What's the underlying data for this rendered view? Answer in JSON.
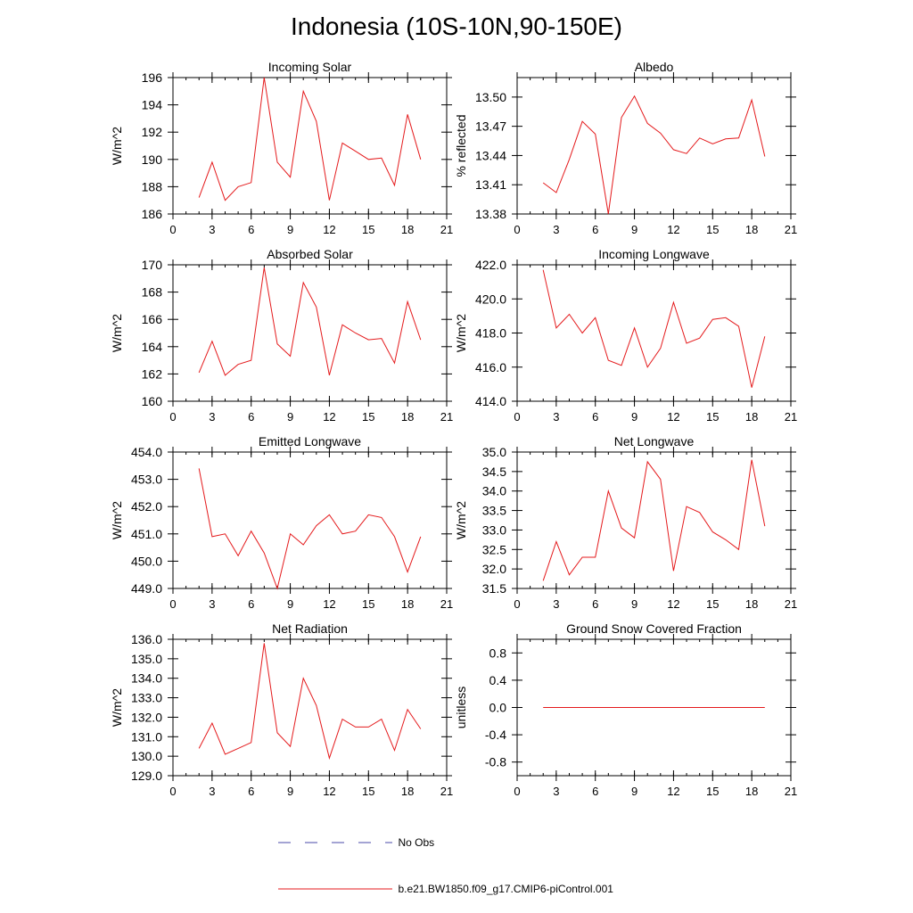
{
  "title": "Indonesia (10S-10N,90-150E)",
  "legend": {
    "obs_label": "No Obs",
    "obs_color": "#4a4aa8",
    "model_label": "b.e21.BW1850.f09_g17.CMIP6-piControl.001",
    "model_color": "#e41a1c"
  },
  "chart_data": [
    {
      "type": "line",
      "title": "Incoming Solar",
      "ylabel": "W/m^2",
      "xlabel": "",
      "xlim": [
        0,
        21
      ],
      "ylim": [
        186,
        196
      ],
      "x_ticks": [
        "0",
        "3",
        "6",
        "9",
        "12",
        "15",
        "18",
        "21"
      ],
      "y_ticks": [
        "186",
        "188",
        "190",
        "192",
        "194",
        "196"
      ],
      "series": [
        {
          "name": "b.e21.BW1850.f09_g17.CMIP6-piControl.001",
          "x": [
            2,
            3,
            4,
            5,
            6,
            7,
            8,
            9,
            10,
            11,
            12,
            13,
            14,
            15,
            16,
            17,
            18,
            19
          ],
          "values": [
            187.2,
            189.8,
            187.0,
            188.0,
            188.3,
            196.0,
            189.8,
            188.7,
            195.0,
            192.8,
            187.0,
            191.2,
            190.6,
            190.0,
            190.1,
            188.1,
            193.3,
            190.0
          ]
        }
      ]
    },
    {
      "type": "line",
      "title": "Albedo",
      "ylabel": "% reflected",
      "xlabel": "",
      "xlim": [
        0,
        21
      ],
      "ylim": [
        13.38,
        13.52
      ],
      "x_ticks": [
        "0",
        "3",
        "6",
        "9",
        "12",
        "15",
        "18",
        "21"
      ],
      "y_ticks": [
        "13.38",
        "13.41",
        "13.44",
        "13.47",
        "13.50"
      ],
      "series": [
        {
          "name": "b.e21.BW1850.f09_g17.CMIP6-piControl.001",
          "x": [
            2,
            3,
            4,
            5,
            6,
            7,
            8,
            9,
            10,
            11,
            12,
            13,
            14,
            15,
            16,
            17,
            18,
            19
          ],
          "values": [
            13.412,
            13.402,
            13.436,
            13.475,
            13.462,
            13.38,
            13.479,
            13.501,
            13.473,
            13.463,
            13.446,
            13.442,
            13.458,
            13.452,
            13.457,
            13.458,
            13.497,
            13.439
          ]
        }
      ]
    },
    {
      "type": "line",
      "title": "Absorbed Solar",
      "ylabel": "W/m^2",
      "xlabel": "",
      "xlim": [
        0,
        21
      ],
      "ylim": [
        160,
        170
      ],
      "x_ticks": [
        "0",
        "3",
        "6",
        "9",
        "12",
        "15",
        "18",
        "21"
      ],
      "y_ticks": [
        "160",
        "162",
        "164",
        "166",
        "168",
        "170"
      ],
      "series": [
        {
          "name": "b.e21.BW1850.f09_g17.CMIP6-piControl.001",
          "x": [
            2,
            3,
            4,
            5,
            6,
            7,
            8,
            9,
            10,
            11,
            12,
            13,
            14,
            15,
            16,
            17,
            18,
            19
          ],
          "values": [
            162.1,
            164.4,
            161.9,
            162.7,
            163.0,
            169.8,
            164.2,
            163.3,
            168.7,
            166.9,
            161.9,
            165.6,
            165.0,
            164.5,
            164.6,
            162.8,
            167.3,
            164.5
          ]
        }
      ]
    },
    {
      "type": "line",
      "title": "Incoming Longwave",
      "ylabel": "W/m^2",
      "xlabel": "",
      "xlim": [
        0,
        21
      ],
      "ylim": [
        414.0,
        422.0
      ],
      "x_ticks": [
        "0",
        "3",
        "6",
        "9",
        "12",
        "15",
        "18",
        "21"
      ],
      "y_ticks": [
        "414.0",
        "416.0",
        "418.0",
        "420.0",
        "422.0"
      ],
      "series": [
        {
          "name": "b.e21.BW1850.f09_g17.CMIP6-piControl.001",
          "x": [
            2,
            3,
            4,
            5,
            6,
            7,
            8,
            9,
            10,
            11,
            12,
            13,
            14,
            15,
            16,
            17,
            18,
            19
          ],
          "values": [
            421.7,
            418.3,
            419.1,
            418.0,
            418.9,
            416.4,
            416.1,
            418.3,
            416.0,
            417.1,
            419.8,
            417.4,
            417.7,
            418.8,
            418.9,
            418.4,
            414.8,
            417.8
          ]
        }
      ]
    },
    {
      "type": "line",
      "title": "Emitted Longwave",
      "ylabel": "W/m^2",
      "xlabel": "",
      "xlim": [
        0,
        21
      ],
      "ylim": [
        449.0,
        454.0
      ],
      "x_ticks": [
        "0",
        "3",
        "6",
        "9",
        "12",
        "15",
        "18",
        "21"
      ],
      "y_ticks": [
        "449.0",
        "450.0",
        "451.0",
        "452.0",
        "453.0",
        "454.0"
      ],
      "series": [
        {
          "name": "b.e21.BW1850.f09_g17.CMIP6-piControl.001",
          "x": [
            2,
            3,
            4,
            5,
            6,
            7,
            8,
            9,
            10,
            11,
            12,
            13,
            14,
            15,
            16,
            17,
            18,
            19
          ],
          "values": [
            453.4,
            450.9,
            451.0,
            450.2,
            451.1,
            450.3,
            449.0,
            451.0,
            450.6,
            451.3,
            451.7,
            451.0,
            451.1,
            451.7,
            451.6,
            450.9,
            449.6,
            450.9
          ]
        }
      ]
    },
    {
      "type": "line",
      "title": "Net Longwave",
      "ylabel": "W/m^2",
      "xlabel": "",
      "xlim": [
        0,
        21
      ],
      "ylim": [
        31.5,
        35.0
      ],
      "x_ticks": [
        "0",
        "3",
        "6",
        "9",
        "12",
        "15",
        "18",
        "21"
      ],
      "y_ticks": [
        "31.5",
        "32.0",
        "32.5",
        "33.0",
        "33.5",
        "34.0",
        "34.5",
        "35.0"
      ],
      "series": [
        {
          "name": "b.e21.BW1850.f09_g17.CMIP6-piControl.001",
          "x": [
            2,
            3,
            4,
            5,
            6,
            7,
            8,
            9,
            10,
            11,
            12,
            13,
            14,
            15,
            16,
            17,
            18,
            19
          ],
          "values": [
            31.7,
            32.7,
            31.85,
            32.3,
            32.3,
            34.0,
            33.05,
            32.8,
            34.75,
            34.3,
            31.95,
            33.6,
            33.45,
            32.95,
            32.75,
            32.5,
            34.8,
            33.1
          ]
        }
      ]
    },
    {
      "type": "line",
      "title": "Net Radiation",
      "ylabel": "W/m^2",
      "xlabel": "",
      "xlim": [
        0,
        21
      ],
      "ylim": [
        129.0,
        136.0
      ],
      "x_ticks": [
        "0",
        "3",
        "6",
        "9",
        "12",
        "15",
        "18",
        "21"
      ],
      "y_ticks": [
        "129.0",
        "130.0",
        "131.0",
        "132.0",
        "133.0",
        "134.0",
        "135.0",
        "136.0"
      ],
      "series": [
        {
          "name": "b.e21.BW1850.f09_g17.CMIP6-piControl.001",
          "x": [
            2,
            3,
            4,
            5,
            6,
            7,
            8,
            9,
            10,
            11,
            12,
            13,
            14,
            15,
            16,
            17,
            18,
            19
          ],
          "values": [
            130.4,
            131.7,
            130.1,
            130.4,
            130.7,
            135.8,
            131.2,
            130.5,
            134.0,
            132.6,
            129.9,
            131.9,
            131.5,
            131.5,
            131.9,
            130.3,
            132.4,
            131.4
          ]
        }
      ]
    },
    {
      "type": "line",
      "title": "Ground Snow Covered Fraction",
      "ylabel": "unitless",
      "xlabel": "",
      "xlim": [
        0,
        21
      ],
      "ylim": [
        -1.0,
        1.0
      ],
      "x_ticks": [
        "0",
        "3",
        "6",
        "9",
        "12",
        "15",
        "18",
        "21"
      ],
      "y_ticks": [
        "-0.8",
        "-0.4",
        "0.0",
        "0.4",
        "0.8"
      ],
      "series": [
        {
          "name": "b.e21.BW1850.f09_g17.CMIP6-piControl.001",
          "x": [
            2,
            3,
            4,
            5,
            6,
            7,
            8,
            9,
            10,
            11,
            12,
            13,
            14,
            15,
            16,
            17,
            18,
            19
          ],
          "values": [
            0,
            0,
            0,
            0,
            0,
            0,
            0,
            0,
            0,
            0,
            0,
            0,
            0,
            0,
            0,
            0,
            0,
            0
          ]
        }
      ]
    }
  ]
}
